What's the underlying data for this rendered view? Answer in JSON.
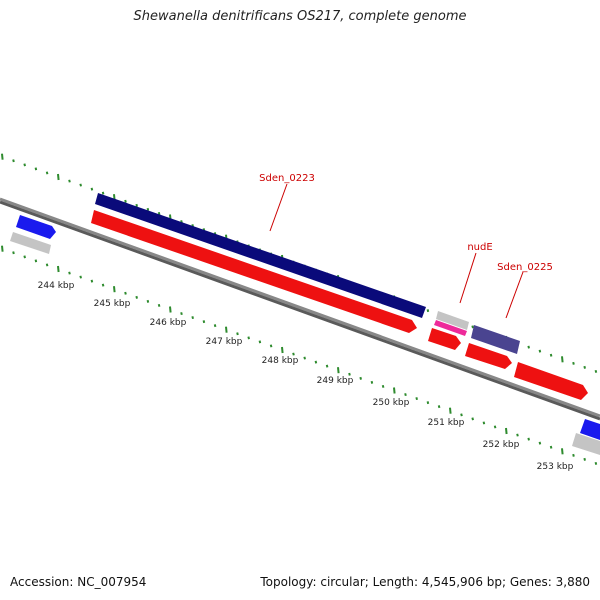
{
  "header": {
    "title": "Shewanella denitrificans OS217, complete genome"
  },
  "footer": {
    "accession": "Accession: NC_007954",
    "summary": "Topology: circular; Length: 4,545,906 bp; Genes: 3,880"
  },
  "colors": {
    "backbone": "#888888",
    "backbone_shadow": "#5a5a5a",
    "tick": "#2e8b2e",
    "label_text": "#cc0000",
    "callout_line": "#cc0000",
    "gene_red": "#ee1111",
    "gene_navy": "#0a0a7a",
    "gene_blue": "#1a1aee",
    "gene_grey": "#c4c4c4",
    "gene_purple": "#4a4490",
    "gene_pink": "#ee2a9a"
  },
  "gene_labels": [
    {
      "text": "Sden_0223"
    },
    {
      "text": "nudE"
    },
    {
      "text": "Sden_0225"
    }
  ],
  "scale_labels": [
    "244 kbp",
    "245 kbp",
    "246 kbp",
    "247 kbp",
    "248 kbp",
    "249 kbp",
    "250 kbp",
    "251 kbp",
    "252 kbp",
    "253 kbp"
  ]
}
